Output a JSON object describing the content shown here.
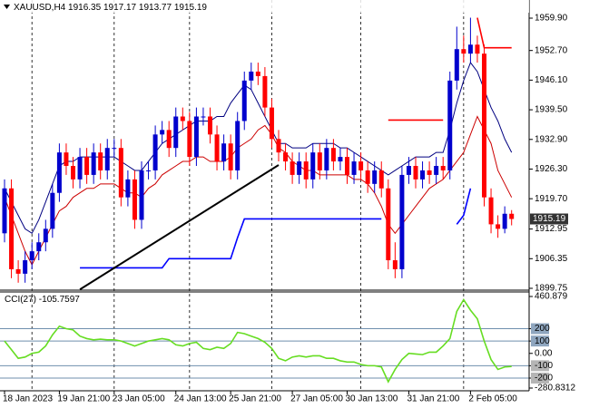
{
  "chart_data": {
    "type": "candlestick",
    "symbol": "XAUUSD,H4",
    "categories": [
      "18 Jan 2023",
      null,
      null,
      null,
      null,
      null,
      null,
      null,
      "19 Jan 21:00",
      null,
      null,
      null,
      null,
      null,
      null,
      null,
      "23 Jan 05:00",
      null,
      null,
      null,
      null,
      null,
      null,
      null,
      null,
      "24 Jan 13:00",
      null,
      null,
      null,
      null,
      null,
      null,
      null,
      "25 Jan 21:00",
      null,
      null,
      null,
      null,
      null,
      null,
      null,
      null,
      "27 Jan 05:00",
      null,
      null,
      null,
      null,
      null,
      null,
      null,
      "30 Jan 13:00",
      null,
      null,
      null,
      null,
      null,
      null,
      null,
      null,
      "31 Jan 21:00",
      null,
      null,
      null,
      null,
      null,
      null,
      null,
      null,
      "2 Feb 05:00",
      null,
      null,
      null,
      null,
      null,
      null
    ],
    "open": [
      1912,
      1922,
      1904,
      1903,
      1906,
      1908,
      1910,
      1913,
      1921,
      1930,
      1927,
      1924,
      1929,
      1925,
      1930,
      1926,
      1931,
      1931,
      1920,
      1924,
      1915,
      1926,
      1926,
      1934,
      1935,
      1931,
      1938,
      1937,
      1929,
      1938,
      1938,
      1934,
      1928,
      1932,
      1926,
      1937,
      1946,
      1948,
      1947,
      1940,
      1933,
      1930,
      1928,
      1925,
      1928,
      1924,
      1930,
      1926,
      1931,
      1928,
      1929,
      1925,
      1928,
      1926,
      1923,
      1926,
      1922,
      1906,
      1904,
      1925,
      1927,
      1924,
      1926,
      1925,
      1927,
      1926,
      1946,
      1953,
      1952,
      1954,
      1952,
      1920,
      1914,
      1913,
      1916.35
    ],
    "high": [
      1924,
      1924,
      1906,
      1908,
      1910,
      1912,
      1915,
      1923,
      1932,
      1932,
      1929,
      1931,
      1931,
      1932,
      1932,
      1933,
      1933,
      1933,
      1926,
      1926,
      1928,
      1928,
      1936,
      1937,
      1937,
      1940,
      1940,
      1939,
      1940,
      1940,
      1940,
      1936,
      1934,
      1934,
      1939,
      1948,
      1950,
      1950,
      1949,
      1942,
      1935,
      1932,
      1930,
      1930,
      1930,
      1932,
      1932,
      1933,
      1933,
      1931,
      1931,
      1930,
      1930,
      1928,
      1928,
      1928,
      1924,
      1910,
      1927,
      1929,
      1929,
      1928,
      1928,
      1929,
      1929,
      1948,
      1958,
      1956,
      1960,
      1956,
      1954,
      1922,
      1916,
      1918,
      1917.17
    ],
    "low": [
      1910,
      1902,
      1901,
      1901,
      1904,
      1906,
      1908,
      1911,
      1919,
      1925,
      1922,
      1922,
      1923,
      1923,
      1924,
      1924,
      1929,
      1918,
      1918,
      1913,
      1913,
      1924,
      1924,
      1932,
      1929,
      1929,
      1935,
      1927,
      1927,
      1936,
      1932,
      1926,
      1926,
      1924,
      1924,
      1935,
      1944,
      1945,
      1938,
      1931,
      1928,
      1926,
      1923,
      1923,
      1922,
      1922,
      1924,
      1924,
      1926,
      1926,
      1923,
      1923,
      1924,
      1921,
      1921,
      1920,
      1904,
      1902,
      1902,
      1923,
      1922,
      1922,
      1923,
      1923,
      1924,
      1924,
      1944,
      1950,
      1950,
      1950,
      1918,
      1912,
      1911,
      1912,
      1913.77
    ],
    "close": [
      1922,
      1904,
      1903,
      1906,
      1908,
      1910,
      1913,
      1921,
      1930,
      1927,
      1924,
      1929,
      1925,
      1930,
      1926,
      1931,
      1931,
      1920,
      1924,
      1915,
      1926,
      1926,
      1934,
      1935,
      1931,
      1938,
      1937,
      1929,
      1938,
      1938,
      1934,
      1928,
      1932,
      1926,
      1937,
      1946,
      1948,
      1947,
      1940,
      1933,
      1930,
      1928,
      1925,
      1928,
      1924,
      1930,
      1926,
      1931,
      1928,
      1929,
      1925,
      1928,
      1926,
      1923,
      1926,
      1922,
      1906,
      1904,
      1925,
      1927,
      1924,
      1926,
      1925,
      1927,
      1926,
      1946,
      1953,
      1952,
      1954,
      1952,
      1920,
      1914,
      1913,
      1916.35,
      1915.19
    ],
    "bull_color": "#0000cd",
    "bear_color": "#ff0000",
    "ylim": [
      1899.75,
      1963.94
    ],
    "yticks": [
      {
        "value": 1959.9,
        "label": "1959.90"
      },
      {
        "value": 1952.7,
        "label": "1952.70"
      },
      {
        "value": 1946.1,
        "label": "1946.10"
      },
      {
        "value": 1939.5,
        "label": "1939.50"
      },
      {
        "value": 1932.9,
        "label": "1932.90"
      },
      {
        "value": 1926.3,
        "label": "1926.30"
      },
      {
        "value": 1919.7,
        "label": "1919.70"
      },
      1912.95,
      1906.35,
      1899.75
    ],
    "ma_fast": {
      "color": "#000080",
      "values": [
        1922,
        1919,
        1916,
        1913,
        1912,
        1915,
        1919,
        1923,
        1927,
        1928,
        1928,
        1929,
        1929,
        1929,
        1929,
        1929,
        1929,
        1928,
        1927,
        1926,
        1926,
        1928,
        1930,
        1932,
        1933,
        1934,
        1935,
        1936,
        1937,
        1937,
        1937,
        1938,
        1938,
        1941,
        1943,
        1945,
        1944,
        1941,
        1938,
        1935,
        1932,
        1932,
        1931,
        1931,
        1931,
        1932,
        1932,
        1932,
        1932,
        1931,
        1931,
        1930,
        1929,
        1928,
        1927,
        1926,
        1925,
        1926,
        1927,
        1928,
        1929,
        1929,
        1929,
        1930,
        1930,
        1935,
        1941,
        1946,
        1950,
        1948,
        1944,
        1940,
        1937,
        1933,
        1930
      ]
    },
    "ma_slow": {
      "color": "#cc0000",
      "values": [
        1920,
        1916,
        1912,
        1908,
        1905,
        1908,
        1911,
        1914,
        1917,
        1918,
        1920,
        1921,
        1922,
        1922,
        1923,
        1923,
        1923,
        1922,
        1921,
        1921,
        1920,
        1922,
        1923,
        1925,
        1926,
        1927,
        1928,
        1928,
        1929,
        1929,
        1928,
        1928,
        1928,
        1929,
        1931,
        1932,
        1933,
        1935,
        1936,
        1934,
        1931,
        1930,
        1928,
        1927,
        1926,
        1926,
        1925,
        1925,
        1925,
        1925,
        1925,
        1924,
        1924,
        1923,
        1921,
        1918,
        1914,
        1912,
        1914,
        1916,
        1918,
        1920,
        1922,
        1923,
        1924,
        1926,
        1928,
        1930,
        1934,
        1938,
        1935,
        1932,
        1926,
        1923,
        1920
      ]
    },
    "support_line": {
      "color": "#0000ff",
      "values": [
        null,
        null,
        null,
        null,
        null,
        null,
        null,
        null,
        null,
        null,
        null,
        1904.3,
        1904.3,
        1904.3,
        1904.3,
        1904.3,
        1904.3,
        1904.3,
        1904.3,
        1904.3,
        1904.3,
        1904.3,
        1904.3,
        1904.3,
        1906.35,
        1906.35,
        1906.35,
        1906.35,
        1906.35,
        1906.35,
        1906.35,
        1906.35,
        1906.35,
        1906.35,
        1911,
        1915.2,
        1915.2,
        1915.2,
        1915.2,
        1915.2,
        1915.2,
        1915.2,
        1915.2,
        1915.2,
        1915.2,
        1915.2,
        1915.2,
        1915.2,
        1915.2,
        1915.2,
        1915.2,
        1915.2,
        1915.2,
        1915.2,
        1915.2,
        1915.2,
        null,
        null,
        null,
        null,
        null,
        null,
        null,
        null,
        null,
        null,
        1914,
        1916,
        1922,
        null,
        null,
        null,
        null,
        null,
        null
      ]
    },
    "resistance_line": {
      "color": "#ff0000",
      "values": [
        null,
        null,
        null,
        null,
        null,
        null,
        null,
        null,
        null,
        null,
        null,
        null,
        null,
        null,
        null,
        null,
        null,
        null,
        null,
        null,
        null,
        null,
        null,
        null,
        null,
        null,
        null,
        null,
        null,
        null,
        null,
        null,
        null,
        null,
        null,
        null,
        null,
        null,
        null,
        null,
        null,
        null,
        null,
        null,
        null,
        null,
        null,
        null,
        null,
        null,
        null,
        null,
        null,
        null,
        null,
        null,
        1937.2,
        1937.2,
        1937.2,
        1937.2,
        1937.2,
        1937.2,
        1937.2,
        1937.2,
        1937.2,
        null,
        null,
        null,
        null,
        1960,
        1953.3,
        1953.3,
        1953.3,
        1953.3,
        1953.3
      ]
    },
    "trendline": {
      "color": "#000000",
      "x": [
        11,
        40
      ],
      "values": [
        1899.5,
        1927.2
      ]
    },
    "indicator": {
      "name": "CCI(27)",
      "color": "#66dd22",
      "level_color": "#6f8fae",
      "values": [
        100,
        30,
        -40,
        -30,
        0,
        10,
        60,
        150,
        220,
        200,
        190,
        140,
        120,
        110,
        115,
        110,
        110,
        100,
        80,
        60,
        80,
        100,
        110,
        120,
        110,
        70,
        60,
        80,
        90,
        40,
        30,
        50,
        40,
        80,
        170,
        160,
        140,
        120,
        90,
        40,
        -40,
        -60,
        -30,
        -20,
        -30,
        -20,
        -20,
        -40,
        -40,
        -60,
        -70,
        -70,
        -90,
        -100,
        -100,
        -110,
        -230,
        -130,
        -50,
        0,
        -5,
        -10,
        10,
        10,
        60,
        120,
        340,
        435,
        350,
        280,
        100,
        -50,
        -130,
        -110,
        -105.7597
      ],
      "ylim": [
        -280.8312,
        460.879
      ],
      "yticks": [
        460.879,
        200,
        100,
        {
          "value": 0,
          "label": "0.00"
        },
        -100,
        -200,
        -280.8312
      ],
      "levels": [
        200,
        100,
        -100,
        -200
      ]
    }
  }
}
